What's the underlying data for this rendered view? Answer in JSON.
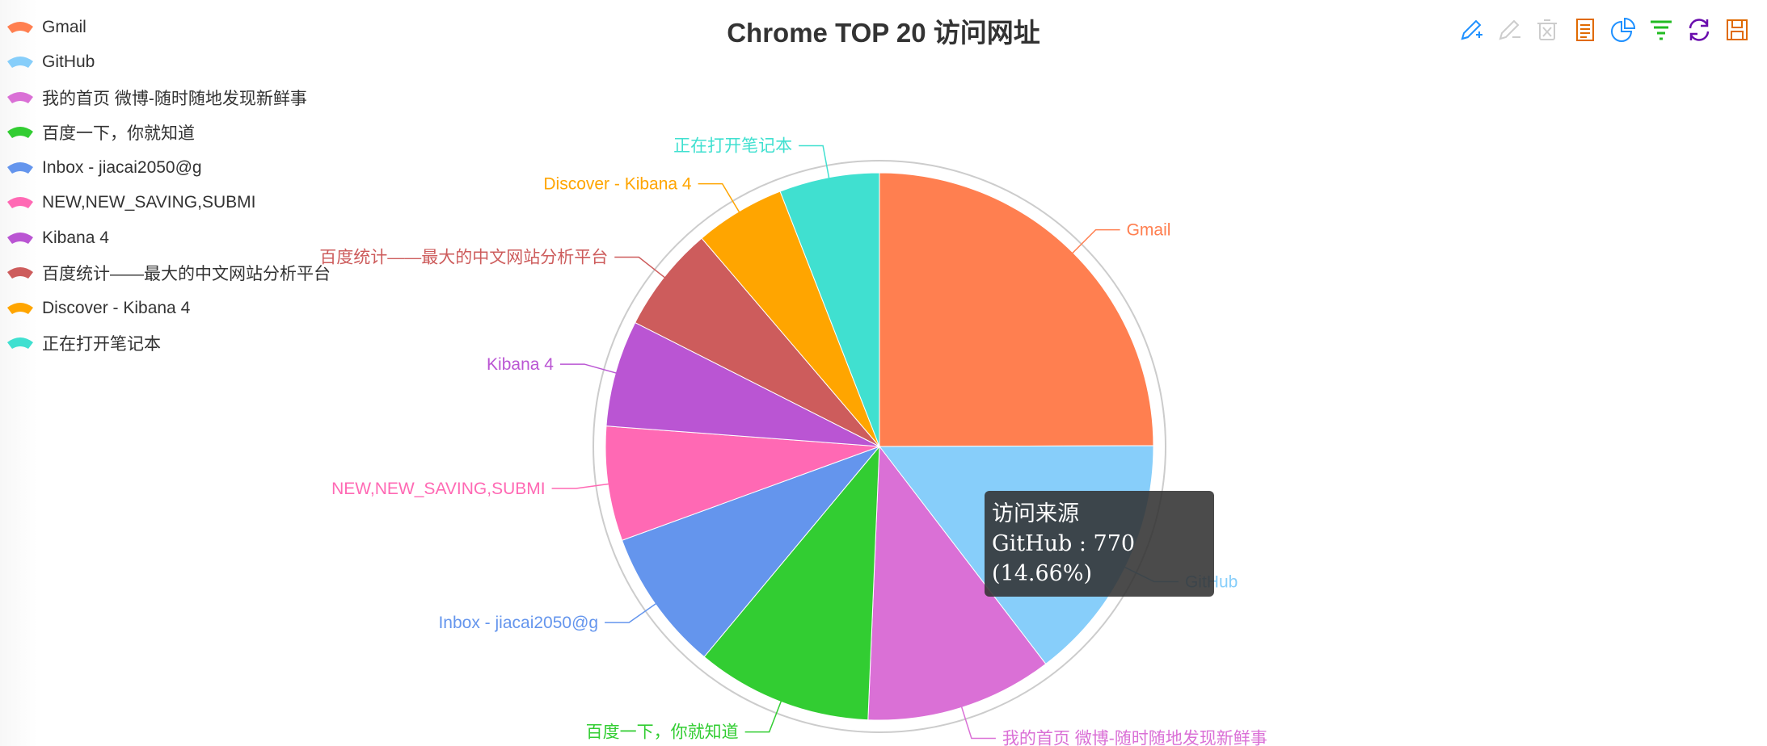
{
  "title": "Chrome TOP 20 访问网址",
  "legend": [
    {
      "label": "Gmail",
      "color": "#ff7f50"
    },
    {
      "label": "GitHub",
      "color": "#87cefa"
    },
    {
      "label": "我的首页 微博-随时随地发现新鲜事",
      "color": "#da70d6"
    },
    {
      "label": "百度一下，你就知道",
      "color": "#32cd32"
    },
    {
      "label": "Inbox - jiacai2050@g",
      "color": "#6495ed"
    },
    {
      "label": "NEW,NEW_SAVING,SUBMI",
      "color": "#ff69b4"
    },
    {
      "label": "Kibana 4",
      "color": "#ba55d3"
    },
    {
      "label": "百度统计——最大的中文网站分析平台",
      "color": "#cd5c5c"
    },
    {
      "label": "Discover - Kibana 4",
      "color": "#ffa500"
    },
    {
      "label": "正在打开笔记本",
      "color": "#40e0d0"
    }
  ],
  "toolbox": [
    {
      "name": "mark-icon",
      "color": "#1e90ff"
    },
    {
      "name": "mark-undo-icon",
      "color": "#cccccc"
    },
    {
      "name": "mark-clear-icon",
      "color": "#cccccc"
    },
    {
      "name": "data-view-icon",
      "color": "#e06a00"
    },
    {
      "name": "pie-chart-icon",
      "color": "#1e90ff"
    },
    {
      "name": "funnel-icon",
      "color": "#22bb22"
    },
    {
      "name": "restore-icon",
      "color": "#6a0dad"
    },
    {
      "name": "save-image-icon",
      "color": "#e06a00"
    }
  ],
  "tooltip": {
    "title": "访问来源",
    "body": "GitHub : 770 (14.66%)"
  },
  "chart_data": {
    "type": "pie",
    "title": "Chrome TOP 20 访问网址",
    "series_name": "访问来源",
    "legend_position": "top-left",
    "slices": [
      {
        "name": "Gmail",
        "value": 1310,
        "color": "#ff7f50"
      },
      {
        "name": "GitHub",
        "value": 770,
        "color": "#87cefa"
      },
      {
        "name": "我的首页 微博-随时随地发现新鲜事",
        "value": 580,
        "color": "#da70d6"
      },
      {
        "name": "百度一下，你就知道",
        "value": 545,
        "color": "#32cd32"
      },
      {
        "name": "Inbox - jiacai2050@g",
        "value": 440,
        "color": "#6495ed"
      },
      {
        "name": "NEW,NEW_SAVING,SUBMI",
        "value": 355,
        "color": "#ff69b4"
      },
      {
        "name": "Kibana 4",
        "value": 330,
        "color": "#ba55d3"
      },
      {
        "name": "百度统计——最大的中文网站分析平台",
        "value": 330,
        "color": "#cd5c5c"
      },
      {
        "name": "Discover - Kibana 4",
        "value": 280,
        "color": "#ffa500"
      },
      {
        "name": "正在打开笔记本",
        "value": 310,
        "color": "#40e0d0"
      }
    ]
  }
}
